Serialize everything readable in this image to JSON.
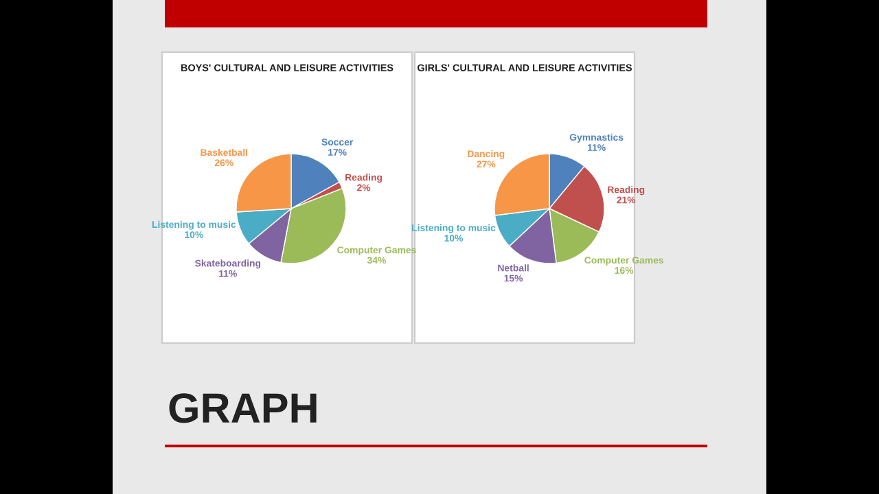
{
  "chart_data": [
    {
      "type": "pie",
      "title": "BOYS' CULTURAL AND LEISURE ACTIVITIES",
      "categories": [
        "Soccer",
        "Reading",
        "Computer Games",
        "Skateboarding",
        "Listening to music",
        "Basketball"
      ],
      "values": [
        17,
        2,
        34,
        11,
        10,
        26
      ],
      "value_labels": [
        "17%",
        "2%",
        "34%",
        "11%",
        "10%",
        "26%"
      ],
      "colors": [
        "#4f81bd",
        "#c0504d",
        "#9bbb59",
        "#8064a2",
        "#4bacc6",
        "#f79646"
      ],
      "legend": false,
      "annotations": [
        "GRAPH"
      ]
    },
    {
      "type": "pie",
      "title": "GIRLS' CULTURAL AND LEISURE ACTIVITIES",
      "categories": [
        "Gymnastics",
        "Reading",
        "Computer Games",
        "Netball",
        "Listening to music",
        "Dancing"
      ],
      "values": [
        11,
        21,
        16,
        15,
        10,
        27
      ],
      "value_labels": [
        "11%",
        "21%",
        "16%",
        "15%",
        "10%",
        "27%"
      ],
      "colors": [
        "#4f81bd",
        "#c0504d",
        "#9bbb59",
        "#8064a2",
        "#4bacc6",
        "#f79646"
      ],
      "legend": false
    }
  ]
}
